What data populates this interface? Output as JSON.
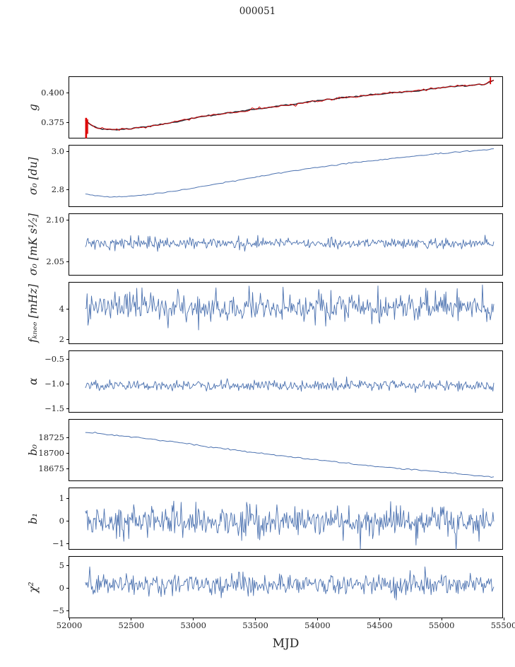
{
  "chart_data": {
    "type": "line",
    "title": "000051",
    "xlabel": "MJD",
    "x_range": {
      "min": 52000,
      "max": 55500
    },
    "x_data_range": {
      "min": 52130,
      "max": 55420
    },
    "x_ticks": [
      52000,
      52500,
      53000,
      53500,
      54000,
      54500,
      55000,
      55500
    ],
    "x_tick_labels": [
      "52000",
      "52500",
      "53000",
      "53500",
      "54000",
      "54500",
      "55000",
      "55500"
    ],
    "grid": false,
    "legend": "none",
    "colors": {
      "primary_line": "#4c72b0",
      "overlay_red": "#dc0000",
      "underlay_dark": "#30303a",
      "axis": "#000000"
    },
    "panels": [
      {
        "id": "g",
        "ylabel": "g",
        "ylim": [
          0.3604,
          0.414
        ],
        "yticks": [
          0.4,
          0.375
        ],
        "ytick_labels": [
          "0.400",
          "0.375"
        ],
        "series": [
          {
            "name": "gain-fit",
            "kind": "smooth",
            "color": "#30303a",
            "width": 1.6,
            "jitter": 0.0003,
            "points": [
              [
                52130,
                0.377
              ],
              [
                52170,
                0.3725
              ],
              [
                52230,
                0.37
              ],
              [
                52300,
                0.3687
              ],
              [
                52400,
                0.3686
              ],
              [
                52500,
                0.3697
              ],
              [
                52650,
                0.3716
              ],
              [
                52800,
                0.374
              ],
              [
                53000,
                0.3786
              ],
              [
                53200,
                0.3816
              ],
              [
                53400,
                0.385
              ],
              [
                53600,
                0.3877
              ],
              [
                53800,
                0.3903
              ],
              [
                54000,
                0.3938
              ],
              [
                54200,
                0.3962
              ],
              [
                54400,
                0.3982
              ],
              [
                54600,
                0.4003
              ],
              [
                54800,
                0.4021
              ],
              [
                55000,
                0.4049
              ],
              [
                55100,
                0.4062
              ],
              [
                55250,
                0.4072
              ],
              [
                55350,
                0.4078
              ],
              [
                55420,
                0.411
              ]
            ]
          },
          {
            "name": "gain-measured",
            "kind": "smooth",
            "color": "#dc0000",
            "width": 0.9,
            "jitter": 0.0006,
            "points": [
              [
                52130,
                0.377
              ],
              [
                52170,
                0.3725
              ],
              [
                52230,
                0.37
              ],
              [
                52300,
                0.3687
              ],
              [
                52400,
                0.3686
              ],
              [
                52500,
                0.3697
              ],
              [
                52650,
                0.3716
              ],
              [
                52800,
                0.374
              ],
              [
                53000,
                0.3786
              ],
              [
                53200,
                0.3816
              ],
              [
                53400,
                0.385
              ],
              [
                53600,
                0.3877
              ],
              [
                53800,
                0.3903
              ],
              [
                54000,
                0.3938
              ],
              [
                54200,
                0.3962
              ],
              [
                54400,
                0.3982
              ],
              [
                54600,
                0.4003
              ],
              [
                54800,
                0.4021
              ],
              [
                55000,
                0.4049
              ],
              [
                55100,
                0.4062
              ],
              [
                55250,
                0.4072
              ],
              [
                55350,
                0.4078
              ],
              [
                55420,
                0.411
              ]
            ],
            "spikes": [
              {
                "x": 52136,
                "y0": 0.3612,
                "y1": 0.3788,
                "w": 2.6
              },
              {
                "x": 52148,
                "y0": 0.365,
                "y1": 0.3776,
                "w": 1.6
              },
              {
                "x": 55393,
                "y0": 0.4078,
                "y1": 0.4139,
                "w": 1.8
              }
            ]
          }
        ]
      },
      {
        "id": "sigma0-du",
        "ylabel": "σ₀ [du]",
        "ylim": [
          2.7074,
          3.0333
        ],
        "yticks": [
          3.0,
          2.8
        ],
        "ytick_labels": [
          "3.0",
          "2.8"
        ],
        "series": [
          {
            "name": "sigma0-du",
            "kind": "smooth",
            "color": "#4c72b0",
            "width": 1.0,
            "jitter": 0.0015,
            "points": [
              [
                52130,
                2.78
              ],
              [
                52220,
                2.77
              ],
              [
                52320,
                2.7645
              ],
              [
                52420,
                2.7655
              ],
              [
                52520,
                2.769
              ],
              [
                52700,
                2.781
              ],
              [
                52900,
                2.8
              ],
              [
                53100,
                2.822
              ],
              [
                53300,
                2.845
              ],
              [
                53500,
                2.868
              ],
              [
                53700,
                2.89
              ],
              [
                53900,
                2.91
              ],
              [
                54100,
                2.928
              ],
              [
                54300,
                2.944
              ],
              [
                54500,
                2.958
              ],
              [
                54700,
                2.972
              ],
              [
                54900,
                2.985
              ],
              [
                55100,
                2.998
              ],
              [
                55250,
                3.006
              ],
              [
                55420,
                3.014
              ]
            ]
          }
        ]
      },
      {
        "id": "sigma0-mk",
        "ylabel": "σ₀ [mK s¹⁄₂]",
        "ylim": [
          2.033,
          2.1076
        ],
        "yticks": [
          2.1,
          2.05
        ],
        "ytick_labels": [
          "2.10",
          "2.05"
        ],
        "series": [
          {
            "name": "sigma0-mk",
            "kind": "noisy",
            "color": "#4c72b0",
            "width": 0.9,
            "mean": 2.0725,
            "std": 0.0032,
            "n": 470,
            "tail": 0.02,
            "tail_mult": 1.8,
            "clip": [
              2.058,
              2.09
            ]
          }
        ]
      },
      {
        "id": "fknee",
        "ylabel": "fₖₙₑₑ [mHz]",
        "ylim": [
          1.674,
          5.767
        ],
        "yticks": [
          4,
          2
        ],
        "ytick_labels": [
          "4",
          "2"
        ],
        "series": [
          {
            "name": "fknee",
            "kind": "noisy",
            "color": "#4c72b0",
            "width": 0.9,
            "mean": 4.15,
            "std": 0.48,
            "n": 470,
            "tail": 0.03,
            "tail_mult": 1.6,
            "clip": [
              2.3,
              5.65
            ]
          }
        ]
      },
      {
        "id": "alpha",
        "ylabel": "α",
        "ylim": [
          -1.586,
          -0.329
        ],
        "yticks": [
          -0.5,
          -1.0,
          -1.5
        ],
        "ytick_labels": [
          "−0.5",
          "−1.0",
          "−1.5"
        ],
        "series": [
          {
            "name": "alpha",
            "kind": "noisy",
            "color": "#4c72b0",
            "width": 0.9,
            "mean": -1.02,
            "std": 0.05,
            "n": 470,
            "tail": 0.03,
            "tail_mult": 1.8,
            "clip": [
              -1.28,
              -0.82
            ]
          }
        ]
      },
      {
        "id": "b0",
        "ylabel": "b₀",
        "ylim": [
          18653,
          18755
        ],
        "yticks": [
          18725,
          18700,
          18675
        ],
        "ytick_labels": [
          "18725",
          "18700",
          "18675"
        ],
        "series": [
          {
            "name": "b0",
            "kind": "smooth",
            "color": "#4c72b0",
            "width": 1.0,
            "jitter": 0.5,
            "points": [
              [
                52130,
                18734
              ],
              [
                52250,
                18732
              ],
              [
                52400,
                18729
              ],
              [
                52550,
                18726
              ],
              [
                52700,
                18722
              ],
              [
                52900,
                18717
              ],
              [
                53100,
                18711
              ],
              [
                53300,
                18706
              ],
              [
                53500,
                18701
              ],
              [
                53700,
                18696
              ],
              [
                53900,
                18691
              ],
              [
                54100,
                18687
              ],
              [
                54300,
                18682
              ],
              [
                54500,
                18678
              ],
              [
                54700,
                18674
              ],
              [
                54900,
                18671
              ],
              [
                55100,
                18667
              ],
              [
                55250,
                18664
              ],
              [
                55350,
                18662
              ],
              [
                55420,
                18661
              ]
            ]
          }
        ]
      },
      {
        "id": "b1",
        "ylabel": "b₁",
        "ylim": [
          -1.277,
          1.431
        ],
        "yticks": [
          1,
          0,
          -1
        ],
        "ytick_labels": [
          "1",
          "0",
          "−1"
        ],
        "series": [
          {
            "name": "b1",
            "kind": "noisy",
            "color": "#4c72b0",
            "width": 0.9,
            "mean": -0.02,
            "std": 0.33,
            "n": 500,
            "tail": 0.04,
            "tail_mult": 2.0,
            "clip": [
              -1.22,
              1.18
            ],
            "outliers": [
              [
                55120,
                -1.24
              ]
            ]
          }
        ]
      },
      {
        "id": "chi2",
        "ylabel": "χ²",
        "ylim": [
          -6.9,
          7.06
        ],
        "yticks": [
          5,
          0,
          -5
        ],
        "ytick_labels": [
          "5",
          "0",
          "−5"
        ],
        "series": [
          {
            "name": "chi2",
            "kind": "noisy",
            "color": "#4c72b0",
            "width": 0.9,
            "mean": 0.8,
            "std": 1.15,
            "n": 470,
            "tail": 0.03,
            "tail_mult": 1.7,
            "clip": [
              -3.6,
              4.8
            ]
          }
        ]
      }
    ]
  }
}
